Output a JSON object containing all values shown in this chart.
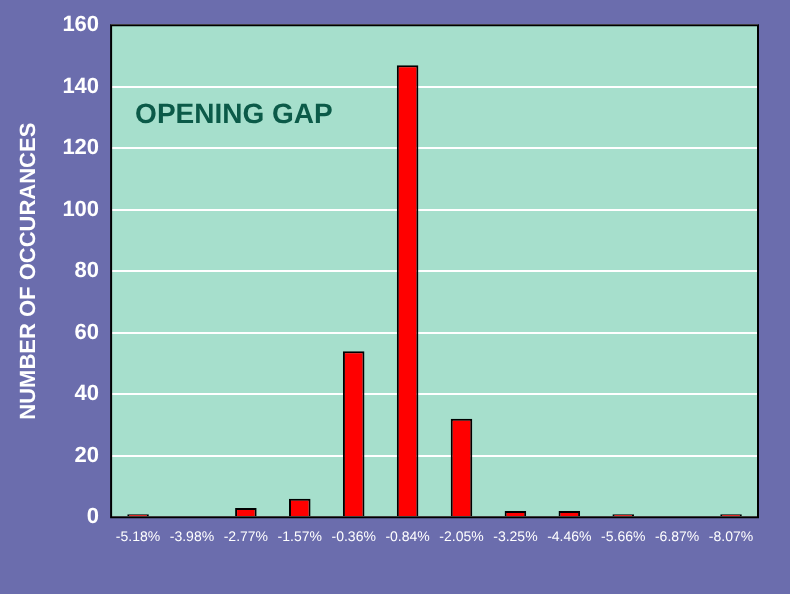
{
  "chart_data": {
    "type": "bar",
    "title": "OPENING GAP",
    "ylabel": "NUMBER OF OCCURANCES",
    "categories": [
      "-5.18%",
      "-3.98%",
      "-2.77%",
      "-1.57%",
      "-0.36%",
      "-0.84%",
      "-2.05%",
      "-3.25%",
      "-4.46%",
      "-5.66%",
      "-6.87%",
      "-8.07%"
    ],
    "values": [
      1,
      0,
      3,
      6,
      54,
      147,
      32,
      2,
      2,
      1,
      0,
      1
    ],
    "color": "#ff0000",
    "ylim": [
      0,
      160
    ],
    "yticks": [
      0,
      20,
      40,
      60,
      80,
      100,
      120,
      140,
      160
    ],
    "grid": "y"
  }
}
